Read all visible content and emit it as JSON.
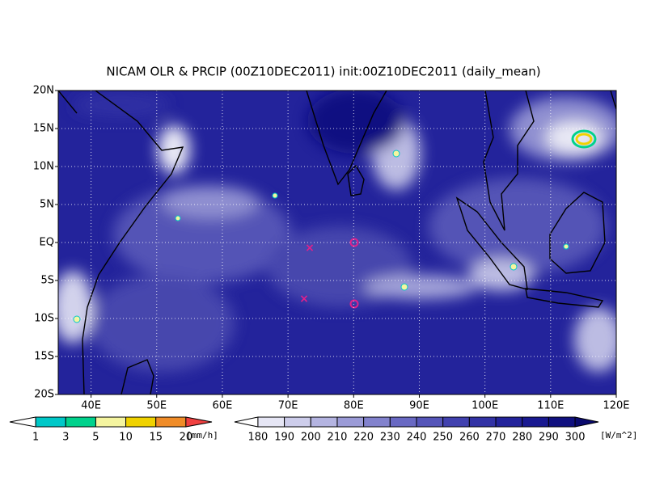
{
  "title": "NICAM OLR & PRCIP (00Z10DEC2011) init:00Z10DEC2011 (daily_mean)",
  "map": {
    "lat_labels": [
      "20N",
      "15N",
      "10N",
      "5N",
      "EQ",
      "5S",
      "10S",
      "15S",
      "20S"
    ],
    "lon_labels": [
      "40E",
      "50E",
      "60E",
      "70E",
      "80E",
      "90E",
      "100E",
      "110E",
      "120E"
    ]
  },
  "colorbars": [
    {
      "labels": [
        "1",
        "3",
        "5",
        "10",
        "15",
        "20"
      ],
      "unit": "[mm/h]",
      "colors": [
        "#ffffff",
        "#00c8c8",
        "#00d28c",
        "#f5f5a0",
        "#f0d200",
        "#f08c28",
        "#f04040"
      ]
    },
    {
      "labels": [
        "180",
        "190",
        "200",
        "210",
        "220",
        "230",
        "240",
        "250",
        "260",
        "270",
        "280",
        "290",
        "300"
      ],
      "unit": "[W/m^2]",
      "colors": [
        "#ffffff",
        "#e6e6f5",
        "#cdcdeb",
        "#b4b4e1",
        "#9b9bd7",
        "#8282cd",
        "#6969c3",
        "#5555b9",
        "#4141af",
        "#3232a5",
        "#23239b",
        "#191991",
        "#10107f",
        "#0a0a6e"
      ]
    }
  ]
}
